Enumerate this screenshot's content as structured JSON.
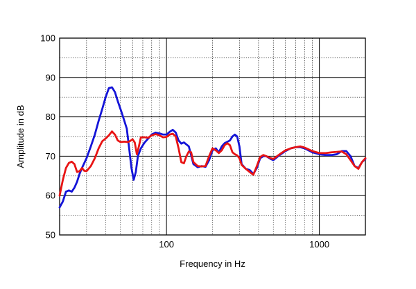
{
  "chart_data": {
    "type": "line",
    "xlabel": "Frequency in Hz",
    "ylabel": "Amplitude in dB",
    "xscale": "log",
    "xlim": [
      20,
      2000
    ],
    "ylim": [
      50,
      100
    ],
    "x_tick_labels": [
      {
        "value": 100,
        "label": "100"
      },
      {
        "value": 1000,
        "label": "1000"
      }
    ],
    "y_tick_labels": [
      {
        "value": 50,
        "label": "50"
      },
      {
        "value": 60,
        "label": "60"
      },
      {
        "value": 70,
        "label": "70"
      },
      {
        "value": 80,
        "label": "80"
      },
      {
        "value": 90,
        "label": "90"
      },
      {
        "value": 100,
        "label": "100"
      }
    ],
    "grid": true,
    "legend": "none",
    "series": [
      {
        "color": "#1414d8",
        "points": [
          [
            20,
            57
          ],
          [
            21,
            58.5
          ],
          [
            22,
            61
          ],
          [
            23,
            61.3
          ],
          [
            24,
            61
          ],
          [
            25,
            62
          ],
          [
            26,
            63.5
          ],
          [
            27,
            65.5
          ],
          [
            28,
            67
          ],
          [
            30,
            69.5
          ],
          [
            32,
            72.5
          ],
          [
            34,
            75.5
          ],
          [
            36,
            79
          ],
          [
            38,
            82
          ],
          [
            40,
            85
          ],
          [
            42,
            87.3
          ],
          [
            44,
            87.5
          ],
          [
            46,
            86.3
          ],
          [
            48,
            84
          ],
          [
            50,
            82
          ],
          [
            52,
            80
          ],
          [
            55,
            77
          ],
          [
            57,
            72
          ],
          [
            59,
            67
          ],
          [
            61,
            64
          ],
          [
            63,
            66
          ],
          [
            65,
            70
          ],
          [
            68,
            72
          ],
          [
            72,
            73.5
          ],
          [
            76,
            74.5
          ],
          [
            80,
            75.5
          ],
          [
            85,
            76
          ],
          [
            90,
            75.8
          ],
          [
            95,
            75.5
          ],
          [
            100,
            75.5
          ],
          [
            105,
            76.2
          ],
          [
            110,
            76.7
          ],
          [
            115,
            76
          ],
          [
            120,
            74
          ],
          [
            125,
            73.2
          ],
          [
            130,
            73.5
          ],
          [
            140,
            72.5
          ],
          [
            150,
            68
          ],
          [
            160,
            67.2
          ],
          [
            170,
            67.5
          ],
          [
            180,
            67.3
          ],
          [
            190,
            69
          ],
          [
            200,
            71.5
          ],
          [
            210,
            72
          ],
          [
            220,
            71
          ],
          [
            230,
            72.5
          ],
          [
            240,
            73.3
          ],
          [
            260,
            74
          ],
          [
            270,
            75
          ],
          [
            280,
            75.5
          ],
          [
            290,
            75
          ],
          [
            300,
            72.5
          ],
          [
            310,
            68
          ],
          [
            330,
            66.8
          ],
          [
            350,
            66.5
          ],
          [
            370,
            65.5
          ],
          [
            390,
            67
          ],
          [
            410,
            69.5
          ],
          [
            430,
            70
          ],
          [
            450,
            70
          ],
          [
            480,
            69.3
          ],
          [
            500,
            69
          ],
          [
            550,
            70.3
          ],
          [
            600,
            71.3
          ],
          [
            650,
            72
          ],
          [
            700,
            72.3
          ],
          [
            750,
            72.3
          ],
          [
            800,
            72
          ],
          [
            900,
            71
          ],
          [
            1000,
            70.5
          ],
          [
            1100,
            70.3
          ],
          [
            1200,
            70.3
          ],
          [
            1300,
            70.5
          ],
          [
            1400,
            71.3
          ],
          [
            1500,
            71.3
          ],
          [
            1600,
            70
          ],
          [
            1700,
            67.5
          ],
          [
            1800,
            67
          ],
          [
            1900,
            68.5
          ],
          [
            2000,
            69.3
          ]
        ]
      },
      {
        "color": "#e81414",
        "points": [
          [
            20,
            60
          ],
          [
            21,
            64
          ],
          [
            22,
            67
          ],
          [
            23,
            68.3
          ],
          [
            24,
            68.6
          ],
          [
            25,
            68
          ],
          [
            26,
            66
          ],
          [
            27,
            66.2
          ],
          [
            28,
            67
          ],
          [
            29,
            66.3
          ],
          [
            30,
            66.2
          ],
          [
            32,
            67.5
          ],
          [
            34,
            69.5
          ],
          [
            36,
            72
          ],
          [
            38,
            73.8
          ],
          [
            40,
            74.5
          ],
          [
            42,
            75.3
          ],
          [
            44,
            76.3
          ],
          [
            46,
            75.5
          ],
          [
            48,
            74
          ],
          [
            50,
            73.6
          ],
          [
            53,
            73.7
          ],
          [
            56,
            73.6
          ],
          [
            58,
            73.9
          ],
          [
            60,
            74.3
          ],
          [
            62,
            73.5
          ],
          [
            64,
            70.5
          ],
          [
            66,
            72.5
          ],
          [
            68,
            74.8
          ],
          [
            72,
            74.8
          ],
          [
            76,
            74.7
          ],
          [
            80,
            75.3
          ],
          [
            85,
            75.6
          ],
          [
            90,
            75.3
          ],
          [
            95,
            74.8
          ],
          [
            100,
            74.9
          ],
          [
            105,
            75.5
          ],
          [
            110,
            75.7
          ],
          [
            115,
            75
          ],
          [
            120,
            72
          ],
          [
            125,
            68.5
          ],
          [
            130,
            68.2
          ],
          [
            135,
            70
          ],
          [
            140,
            71.2
          ],
          [
            145,
            71
          ],
          [
            150,
            68.5
          ],
          [
            160,
            67.5
          ],
          [
            170,
            67.4
          ],
          [
            180,
            67.5
          ],
          [
            190,
            70
          ],
          [
            200,
            72
          ],
          [
            210,
            71.5
          ],
          [
            220,
            70.8
          ],
          [
            230,
            71.5
          ],
          [
            240,
            72.8
          ],
          [
            250,
            73.3
          ],
          [
            260,
            72.8
          ],
          [
            270,
            71
          ],
          [
            280,
            70.5
          ],
          [
            290,
            70.2
          ],
          [
            300,
            69.5
          ],
          [
            310,
            67.8
          ],
          [
            330,
            66.8
          ],
          [
            350,
            66
          ],
          [
            370,
            65.3
          ],
          [
            390,
            67.5
          ],
          [
            410,
            69.8
          ],
          [
            430,
            70.3
          ],
          [
            450,
            70
          ],
          [
            480,
            69.5
          ],
          [
            500,
            69.3
          ],
          [
            550,
            70.5
          ],
          [
            600,
            71.5
          ],
          [
            650,
            72
          ],
          [
            700,
            72.3
          ],
          [
            750,
            72.5
          ],
          [
            800,
            72.2
          ],
          [
            900,
            71.3
          ],
          [
            1000,
            70.8
          ],
          [
            1100,
            70.8
          ],
          [
            1200,
            71
          ],
          [
            1300,
            71.1
          ],
          [
            1400,
            71.2
          ],
          [
            1500,
            70.5
          ],
          [
            1600,
            69
          ],
          [
            1700,
            67.5
          ],
          [
            1800,
            66.8
          ],
          [
            1900,
            68.5
          ],
          [
            2000,
            69.5
          ]
        ]
      }
    ]
  }
}
